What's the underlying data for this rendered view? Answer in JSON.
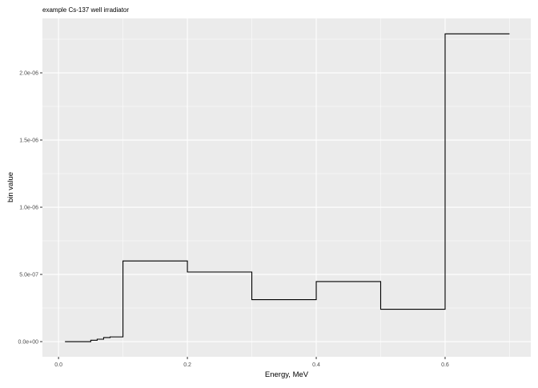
{
  "chart_data": {
    "type": "line",
    "style": "step",
    "title": "example Cs-137 well irradiator",
    "xlabel": "Energy, MeV",
    "ylabel": "bin value",
    "xlim": [
      -0.025,
      0.733
    ],
    "ylim": [
      -1.13e-07,
      2.405e-06
    ],
    "x_ticks": [
      0.0,
      0.2,
      0.4,
      0.6
    ],
    "x_tick_labels": [
      "0.0",
      "0.2",
      "0.4",
      "0.6"
    ],
    "y_ticks": [
      0,
      5e-07,
      1e-06,
      1.5e-06,
      2e-06
    ],
    "y_tick_labels": [
      "0.0e+00",
      "5.0e-07",
      "1.0e-06",
      "1.5e-06",
      "2.0e-06"
    ],
    "grid": true,
    "bin_edges": [
      0.01,
      0.05,
      0.06,
      0.07,
      0.08,
      0.1,
      0.2,
      0.3,
      0.4,
      0.5,
      0.6,
      0.7
    ],
    "values": [
      0,
      1e-08,
      1.8e-08,
      3e-08,
      3.5e-08,
      6e-07,
      5.18e-07,
      3.12e-07,
      4.47e-07,
      2.41e-07,
      2.29e-06
    ],
    "colors": {
      "panel": "#EBEBEB",
      "grid": "#FFFFFF",
      "line": "#000000",
      "tick_text": "#4D4D4D"
    }
  }
}
